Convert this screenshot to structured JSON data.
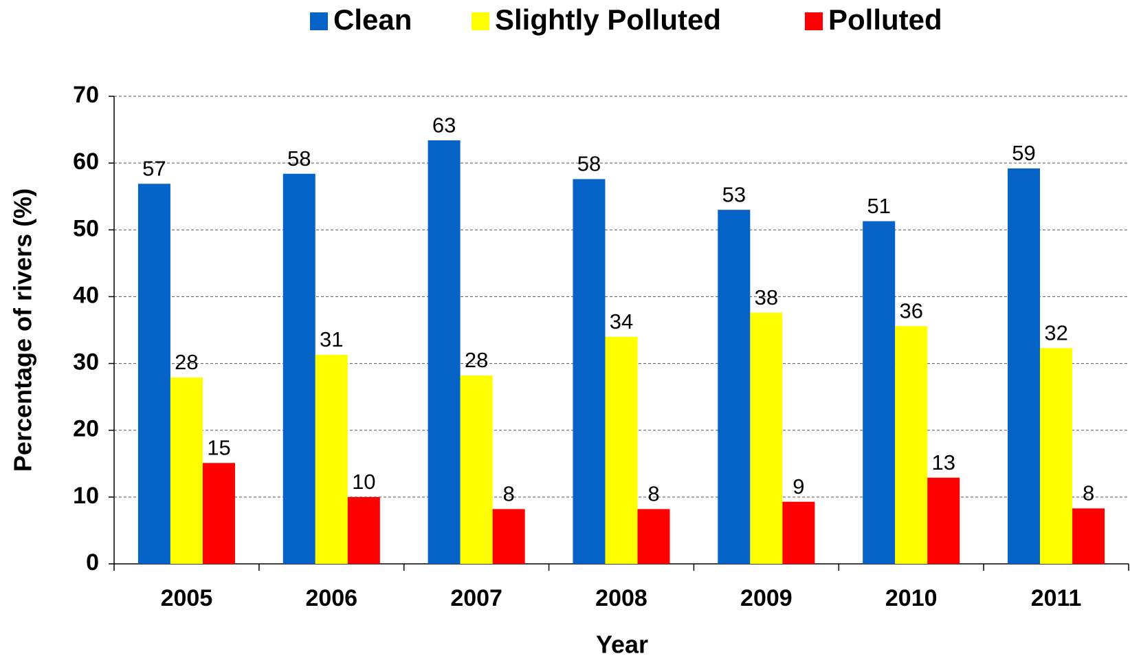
{
  "chart_data": {
    "type": "bar",
    "categories": [
      "2005",
      "2006",
      "2007",
      "2008",
      "2009",
      "2010",
      "2011"
    ],
    "series": [
      {
        "name": "Clean",
        "color": "#0563c8",
        "values": [
          56.9,
          58.4,
          63.4,
          57.6,
          53.0,
          51.3,
          59.2
        ],
        "value_labels": [
          "57",
          "58",
          "63",
          "58",
          "53",
          "51",
          "59"
        ]
      },
      {
        "name": "Slightly Polluted",
        "color": "#ffff00",
        "values": [
          27.9,
          31.3,
          28.2,
          34.0,
          37.6,
          35.6,
          32.3
        ],
        "value_labels": [
          "28",
          "31",
          "28",
          "34",
          "38",
          "36",
          "32"
        ]
      },
      {
        "name": "Polluted",
        "color": "#ff0000",
        "values": [
          15.1,
          10.0,
          8.2,
          8.2,
          9.3,
          12.9,
          8.3
        ],
        "value_labels": [
          "15",
          "10",
          "8",
          "8",
          "9",
          "13",
          "8"
        ]
      }
    ],
    "x_label": "Year",
    "y_label": "Percentage of rivers (%)",
    "ylim": [
      0,
      70
    ],
    "yticks": [
      0,
      10,
      20,
      30,
      40,
      50,
      60,
      70
    ],
    "grid": true,
    "legend": "top"
  }
}
